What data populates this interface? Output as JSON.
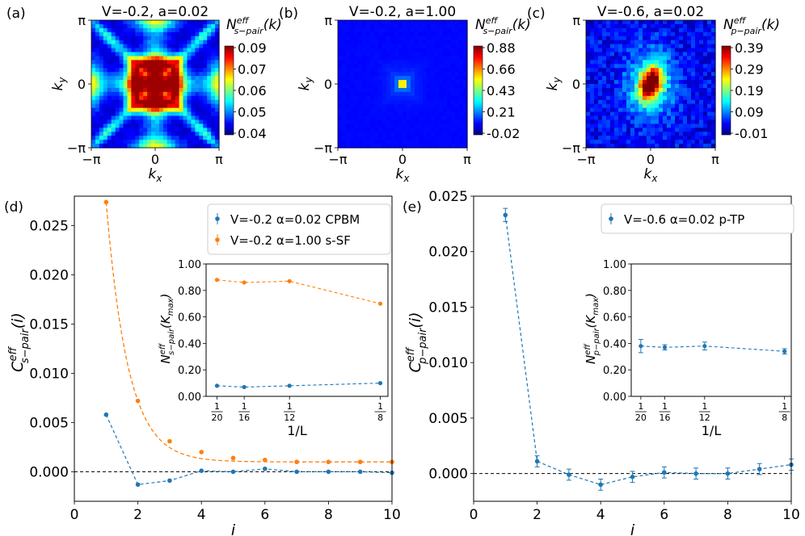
{
  "chart_data": [
    {
      "panel": "(a)",
      "type": "heatmap",
      "title": "V=-0.2, a=0.02",
      "xlabel": "k",
      "xlabel_sub": "x",
      "ylabel": "k",
      "ylabel_sub": "y",
      "x_ticks": [
        "−π",
        "0",
        "π"
      ],
      "y_ticks": [
        "π",
        "0",
        "−π"
      ],
      "colorbar_label": "N",
      "colorbar_label_sup": "eff",
      "colorbar_label_sub": "s−pair",
      "colorbar_label_tail": "(k)",
      "colorbar_ticks": [
        "0.09",
        "0.07",
        "0.06",
        "0.05",
        "0.04"
      ],
      "vmin": 0.04,
      "vmax": 0.09,
      "pattern": "square-ring",
      "peak_position": [
        0,
        0
      ]
    },
    {
      "panel": "(b)",
      "type": "heatmap",
      "title": "V=-0.2, a=1.00",
      "xlabel": "k",
      "xlabel_sub": "x",
      "ylabel": "k",
      "ylabel_sub": "y",
      "x_ticks": [
        "−π",
        "0",
        "π"
      ],
      "y_ticks": [
        "π",
        "0",
        "−π"
      ],
      "colorbar_label": "N",
      "colorbar_label_sup": "eff",
      "colorbar_label_sub": "s−pair",
      "colorbar_label_tail": "(k)",
      "colorbar_ticks": [
        "0.88",
        "0.66",
        "0.43",
        "0.21",
        "-0.02"
      ],
      "vmin": -0.02,
      "vmax": 0.88,
      "pattern": "sharp-peak",
      "peak_position": [
        0,
        0
      ]
    },
    {
      "panel": "(c)",
      "type": "heatmap",
      "title": "V=-0.6, a=0.02",
      "xlabel": "k",
      "xlabel_sub": "x",
      "ylabel": "k",
      "ylabel_sub": "y",
      "x_ticks": [
        "−π",
        "0",
        "π"
      ],
      "y_ticks": [
        "π",
        "0",
        "−π"
      ],
      "colorbar_label": "N",
      "colorbar_label_sup": "eff",
      "colorbar_label_sub": "p−pair",
      "colorbar_label_tail": "(k)",
      "colorbar_ticks": [
        "0.39",
        "0.29",
        "0.19",
        "0.09",
        "-0.01"
      ],
      "vmin": -0.01,
      "vmax": 0.39,
      "pattern": "elongated-peak",
      "peak_position": [
        0,
        0
      ]
    },
    {
      "panel": "(d)",
      "type": "line",
      "xlabel": "i",
      "ylabel": "C",
      "ylabel_sup": "eff",
      "ylabel_sub": "s−pair",
      "ylabel_tail": "(i)",
      "xlim": [
        0,
        10
      ],
      "ylim": [
        -0.003,
        0.028
      ],
      "x_ticks": [
        0,
        2,
        4,
        6,
        8,
        10
      ],
      "y_ticks": [
        0.0,
        0.005,
        0.01,
        0.015,
        0.02,
        0.025
      ],
      "y_tick_labels": [
        "0.000",
        "0.005",
        "0.010",
        "0.015",
        "0.020",
        "0.025"
      ],
      "legend_position": "top-right",
      "series": [
        {
          "name": "V=-0.2 α=0.02 CPBM",
          "color": "#1f77b4",
          "x": [
            1,
            2,
            3,
            4,
            5,
            6,
            7,
            8,
            9,
            10
          ],
          "values": [
            0.0058,
            -0.0013,
            -0.0009,
            0.0001,
            0.0,
            0.0003,
            0.0,
            0.0,
            0.0,
            -0.0001
          ],
          "style": "dashed-with-points"
        },
        {
          "name": "V=-0.2 α=1.00 s-SF",
          "color": "#ff7f0e",
          "x": [
            1,
            2,
            3,
            4,
            5,
            6,
            7,
            8,
            9,
            10
          ],
          "values": [
            0.0274,
            0.0072,
            0.0031,
            0.002,
            0.0014,
            0.0012,
            0.001,
            0.001,
            0.001,
            0.001
          ],
          "style": "points-with-dashed-fit"
        }
      ],
      "inset": {
        "xlabel": "1/L",
        "ylabel": "N",
        "ylabel_sup": "eff",
        "ylabel_sub": "s−pair",
        "ylabel_tail": "(K",
        "ylabel_tail_sub": "max",
        "ylabel_close": ")",
        "ylim": [
          0,
          1
        ],
        "y_ticks": [
          "0.00",
          "0.20",
          "0.40",
          "0.60",
          "0.80",
          "1.00"
        ],
        "x_ticks": [
          {
            "value": 0.05,
            "num": "1",
            "den": "20"
          },
          {
            "value": 0.0625,
            "num": "1",
            "den": "16"
          },
          {
            "value": 0.0833,
            "num": "1",
            "den": "12"
          },
          {
            "value": 0.125,
            "num": "1",
            "den": "8"
          }
        ],
        "series": [
          {
            "color": "#ff7f0e",
            "x": [
              0.05,
              0.0625,
              0.0833,
              0.125
            ],
            "values": [
              0.88,
              0.86,
              0.87,
              0.7
            ]
          },
          {
            "color": "#1f77b4",
            "x": [
              0.05,
              0.0625,
              0.0833,
              0.125
            ],
            "values": [
              0.08,
              0.07,
              0.08,
              0.1
            ]
          }
        ]
      }
    },
    {
      "panel": "(e)",
      "type": "line",
      "xlabel": "i",
      "ylabel": "C",
      "ylabel_sup": "eff",
      "ylabel_sub": "p−pair",
      "ylabel_tail": "(i)",
      "xlim": [
        0,
        10
      ],
      "ylim": [
        -0.0025,
        0.025
      ],
      "x_ticks": [
        0,
        2,
        4,
        6,
        8,
        10
      ],
      "y_ticks": [
        0.0,
        0.005,
        0.01,
        0.015,
        0.02,
        0.025
      ],
      "y_tick_labels": [
        "0.000",
        "0.005",
        "0.010",
        "0.015",
        "0.020",
        "0.025"
      ],
      "legend_position": "top-right",
      "series": [
        {
          "name": "V=-0.6 α=0.02 p-TP",
          "color": "#1f77b4",
          "x": [
            1,
            2,
            3,
            4,
            5,
            6,
            7,
            8,
            9,
            10
          ],
          "values": [
            0.0233,
            0.0011,
            -0.0001,
            -0.001,
            -0.0003,
            0.0001,
            0.0,
            0.0,
            0.0004,
            0.0008
          ],
          "errors": [
            0.0006,
            0.0005,
            0.0005,
            0.0005,
            0.0005,
            0.0005,
            0.0005,
            0.0005,
            0.0005,
            0.0005
          ],
          "style": "dashed-with-errorbars"
        }
      ],
      "inset": {
        "xlabel": "1/L",
        "ylabel": "N",
        "ylabel_sup": "eff",
        "ylabel_sub": "p−pair",
        "ylabel_tail": "(K",
        "ylabel_tail_sub": "max",
        "ylabel_close": ")",
        "ylim": [
          0,
          1
        ],
        "y_ticks": [
          "0.00",
          "0.20",
          "0.40",
          "0.60",
          "0.80",
          "1.00"
        ],
        "x_ticks": [
          {
            "value": 0.05,
            "num": "1",
            "den": "20"
          },
          {
            "value": 0.0625,
            "num": "1",
            "den": "16"
          },
          {
            "value": 0.0833,
            "num": "1",
            "den": "12"
          },
          {
            "value": 0.125,
            "num": "1",
            "den": "8"
          }
        ],
        "series": [
          {
            "color": "#1f77b4",
            "x": [
              0.05,
              0.0625,
              0.0833,
              0.125
            ],
            "values": [
              0.38,
              0.37,
              0.38,
              0.34
            ],
            "errors": [
              0.05,
              0.02,
              0.03,
              0.02
            ]
          }
        ]
      }
    }
  ]
}
